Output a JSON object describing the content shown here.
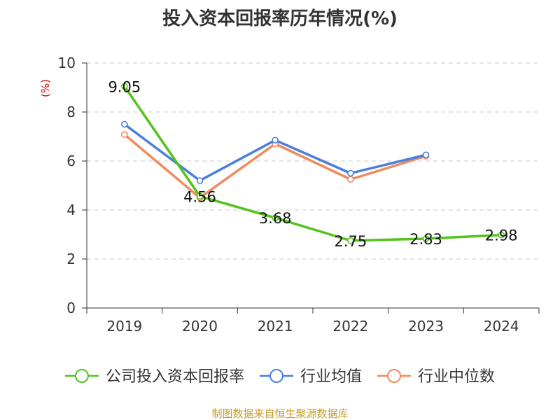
{
  "chart_data": {
    "type": "line",
    "title": "投入资本回报率历年情况(%)",
    "ylabel": "(%)",
    "xlabel": "",
    "categories": [
      "2019",
      "2020",
      "2021",
      "2022",
      "2023",
      "2024"
    ],
    "ylim": [
      0,
      10
    ],
    "yticks": [
      0,
      2,
      4,
      6,
      8,
      10
    ],
    "grid": true,
    "legend_position": "bottom",
    "series": [
      {
        "name": "公司投入资本回报率",
        "color": "#52c41a",
        "values": [
          9.05,
          4.56,
          3.68,
          2.75,
          2.83,
          2.98
        ],
        "show_labels": true
      },
      {
        "name": "行业均值",
        "color": "#4a7fdc",
        "values": [
          7.5,
          5.2,
          6.85,
          5.5,
          6.25,
          null
        ],
        "show_labels": false
      },
      {
        "name": "行业中位数",
        "color": "#f08a5d",
        "values": [
          7.08,
          4.5,
          6.7,
          5.25,
          6.2,
          null
        ],
        "show_labels": false
      }
    ],
    "source": "制图数据来自恒生聚源数据库"
  }
}
